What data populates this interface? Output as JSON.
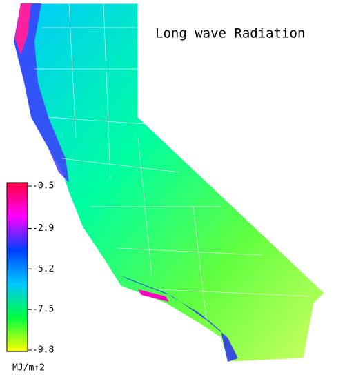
{
  "title": "Long wave Radiation",
  "colorbar": {
    "lim": [
      -0.5,
      -9.8
    ],
    "ticks": [
      -0.5,
      -2.9,
      -5.2,
      -7.5,
      -9.8
    ],
    "unit": "MJ/m↑2",
    "colors": [
      "#ff0040",
      "#ff00ff",
      "#0040ff",
      "#00c8ff",
      "#00ff40",
      "#ffff00"
    ]
  }
}
